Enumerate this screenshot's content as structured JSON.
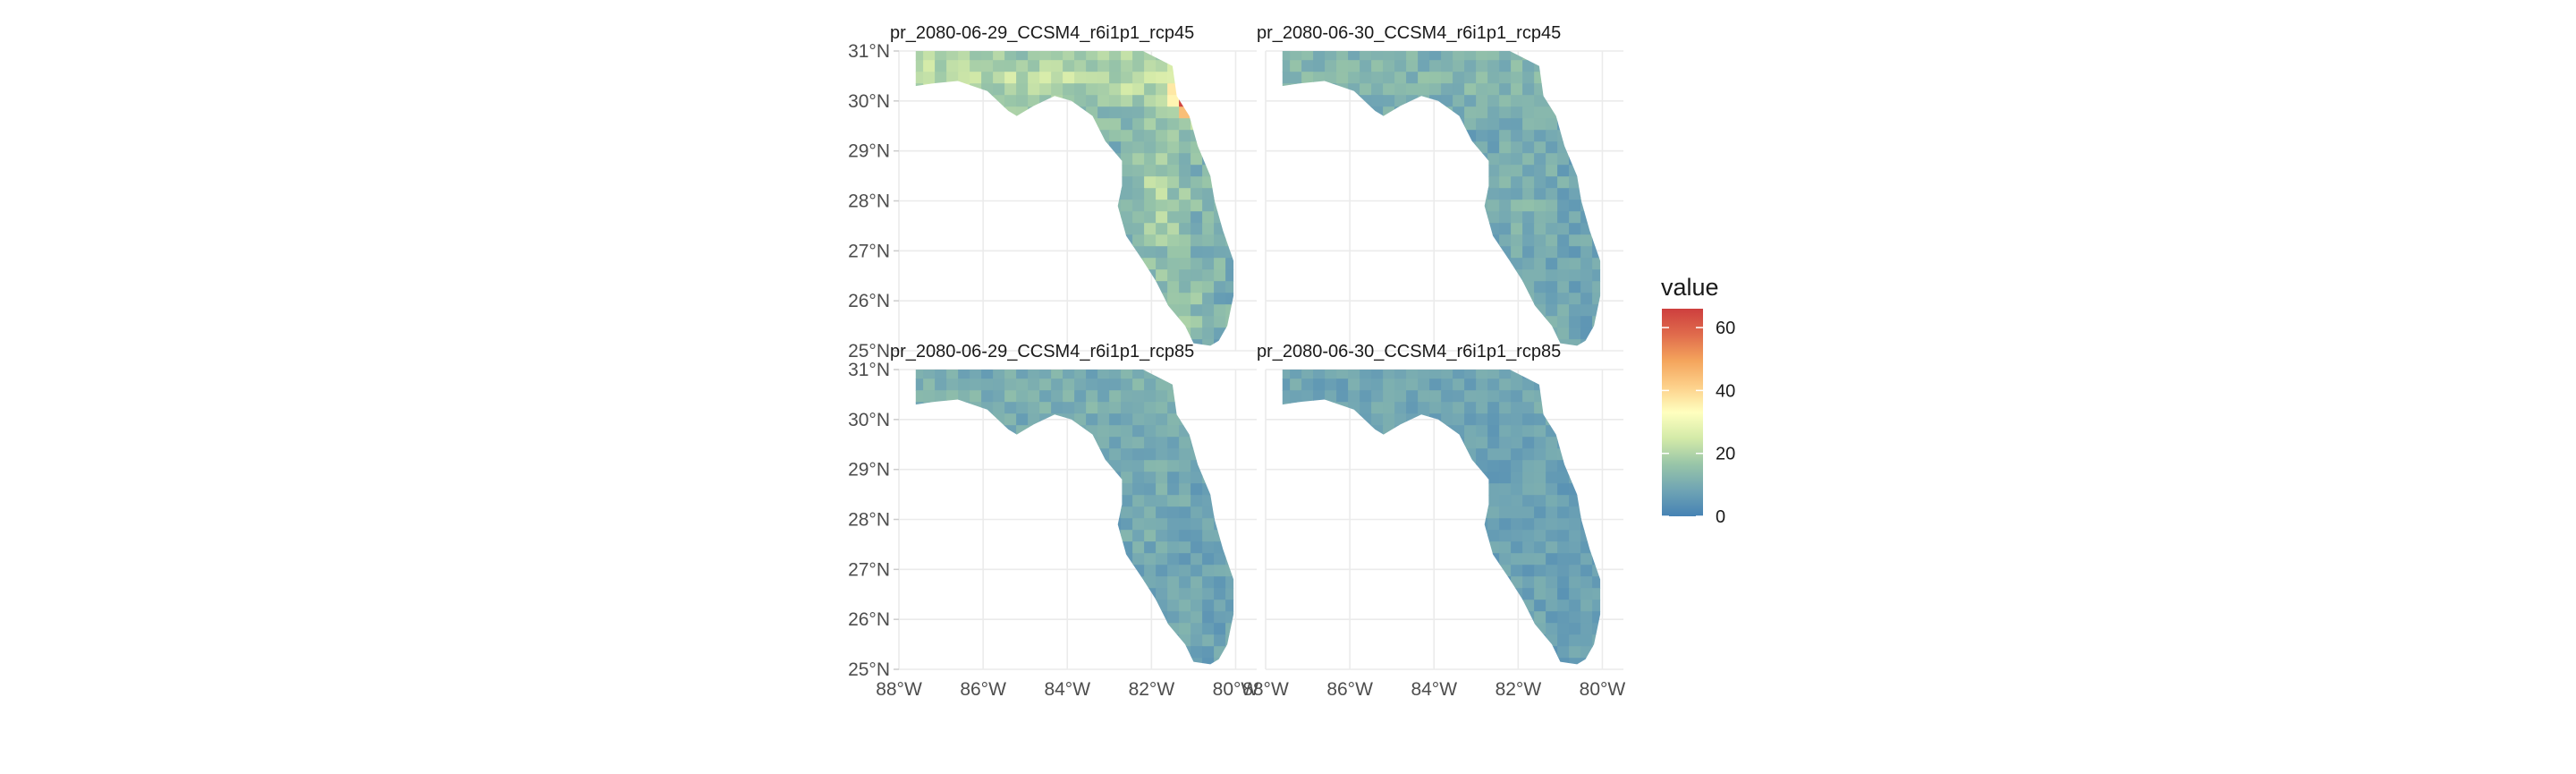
{
  "chart_data": {
    "type": "heatmap",
    "map_region": "Florida",
    "panels": [
      {
        "title": "pr_2080-06-29_CCSM4_r6i1p1_rcp45",
        "intensity": 1.0,
        "hotspots": [
          {
            "lon": -81.3,
            "lat": 30.1,
            "value": 66
          },
          {
            "lon": -81.1,
            "lat": 30.0,
            "value": 62
          },
          {
            "lon": -81.55,
            "lat": 30.25,
            "value": 42
          }
        ]
      },
      {
        "title": "pr_2080-06-30_CCSM4_r6i1p1_rcp45",
        "intensity": 0.55,
        "hotspots": []
      },
      {
        "title": "pr_2080-06-29_CCSM4_r6i1p1_rcp85",
        "intensity": 0.45,
        "hotspots": []
      },
      {
        "title": "pr_2080-06-30_CCSM4_r6i1p1_rcp85",
        "intensity": 0.3,
        "hotspots": []
      }
    ],
    "x_axis": {
      "ticks": [
        -88,
        -86,
        -84,
        -82,
        -80
      ],
      "tick_labels": [
        "88°W",
        "86°W",
        "84°W",
        "82°W",
        "80°W"
      ],
      "range": [
        -88.0,
        -79.5
      ]
    },
    "y_axis": {
      "ticks": [
        25,
        26,
        27,
        28,
        29,
        30,
        31
      ],
      "tick_labels": [
        "25°N",
        "26°N",
        "27°N",
        "28°N",
        "29°N",
        "30°N",
        "31°N"
      ],
      "range": [
        25.0,
        31.0
      ]
    },
    "legend": {
      "title": "value",
      "ticks": [
        0,
        20,
        40,
        60
      ],
      "tick_labels": [
        "0",
        "20",
        "40",
        "60"
      ],
      "limits": [
        0,
        66
      ],
      "colors": [
        "#4682b4",
        "#6fa4b4",
        "#98c5a8",
        "#d3eaa8",
        "#ffffbf",
        "#fdd08a",
        "#f4a45c",
        "#e06b4c",
        "#cd3f3e"
      ],
      "placement": "right"
    },
    "grid": true
  }
}
